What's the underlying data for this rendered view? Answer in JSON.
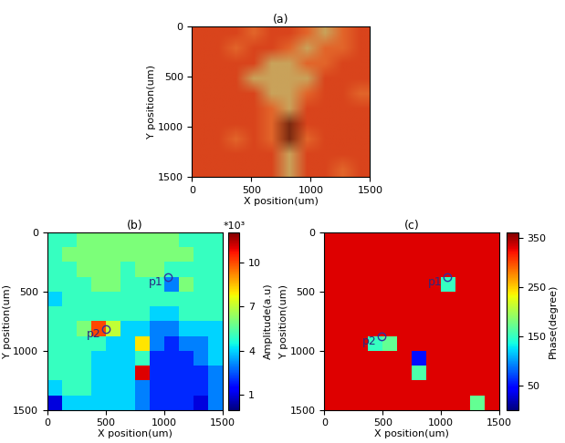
{
  "chart_data": [
    {
      "type": "image",
      "title": "(a)",
      "x_label": "X position(um)",
      "y_label": "Y position(um)",
      "xlim": [
        0,
        1500
      ],
      "ylim": [
        1500,
        0
      ],
      "xticks": [
        0,
        500,
        1000,
        1500
      ],
      "yticks": [
        0,
        500,
        1000,
        1500
      ],
      "cells": [
        [
          "#d9441c",
          "#d9441c",
          "#d9441c",
          "#e2652a",
          "#d9441c",
          "#d9441c",
          "#e2652a",
          "#c9a25a",
          "#e2652a",
          "#d9441c"
        ],
        [
          "#d9441c",
          "#d9441c",
          "#e2652a",
          "#d9441c",
          "#d9441c",
          "#e2652a",
          "#c9a25a",
          "#e2652a",
          "#e2652a",
          "#d9441c"
        ],
        [
          "#d9441c",
          "#d9441c",
          "#d9441c",
          "#d9441c",
          "#c9a25a",
          "#c9a25a",
          "#e2652a",
          "#e2652a",
          "#d9441c",
          "#d9441c"
        ],
        [
          "#d9441c",
          "#d9441c",
          "#d9441c",
          "#c9a25a",
          "#c9a25a",
          "#c9a25a",
          "#c9a25a",
          "#d9441c",
          "#d9441c",
          "#d9441c"
        ],
        [
          "#d9441c",
          "#d9441c",
          "#d9441c",
          "#d9441c",
          "#c9a25a",
          "#c9a25a",
          "#e2652a",
          "#d9441c",
          "#d9441c",
          "#e2652a"
        ],
        [
          "#d9441c",
          "#d9441c",
          "#d9441c",
          "#d9441c",
          "#e2652a",
          "#c9a25a",
          "#d9441c",
          "#d9441c",
          "#d9441c",
          "#d9441c"
        ],
        [
          "#d9441c",
          "#d9441c",
          "#d9441c",
          "#d9441c",
          "#e2652a",
          "#7a2a10",
          "#d9441c",
          "#d9441c",
          "#d9441c",
          "#d9441c"
        ],
        [
          "#d9441c",
          "#d9441c",
          "#e2652a",
          "#d9441c",
          "#e2652a",
          "#7a2a10",
          "#e2652a",
          "#d9441c",
          "#d9441c",
          "#d9441c"
        ],
        [
          "#d9441c",
          "#d9441c",
          "#d9441c",
          "#d9441c",
          "#d9441c",
          "#c9a25a",
          "#d9441c",
          "#d9441c",
          "#d9441c",
          "#d9441c"
        ],
        [
          "#d9441c",
          "#d9441c",
          "#d9441c",
          "#d9441c",
          "#d9441c",
          "#c9a25a",
          "#d9441c",
          "#d9441c",
          "#e2652a",
          "#d9441c"
        ]
      ]
    },
    {
      "type": "heatmap",
      "title": "(b)",
      "x_label": "X position(um)",
      "y_label": "Y position(um)",
      "xlim": [
        0,
        1500
      ],
      "ylim": [
        1500,
        0
      ],
      "xticks": [
        0,
        500,
        1000,
        1500
      ],
      "yticks": [
        0,
        500,
        1000,
        1500
      ],
      "colorbar_label": "Amplitude(a.u)",
      "colorbar_multiplier": "*10³",
      "colorbar_range": [
        0,
        12
      ],
      "colorbar_ticks": [
        1,
        4,
        7,
        10
      ],
      "cells": [
        [
          5,
          5,
          6,
          6,
          6,
          6,
          6,
          6,
          6,
          5,
          5,
          5
        ],
        [
          5,
          6,
          6,
          6,
          6,
          6,
          6,
          6,
          6,
          6,
          5,
          5
        ],
        [
          5,
          5,
          6,
          6,
          6,
          5,
          6,
          6,
          5,
          5,
          5,
          5
        ],
        [
          5,
          5,
          5,
          6,
          6,
          5,
          5,
          5,
          3,
          6,
          5,
          5
        ],
        [
          4,
          5,
          5,
          5,
          5,
          5,
          5,
          5,
          5,
          5,
          5,
          5
        ],
        [
          5,
          5,
          5,
          5,
          5,
          5,
          5,
          4,
          4,
          5,
          5,
          5
        ],
        [
          5,
          5,
          6,
          10,
          7,
          4,
          4,
          3,
          3,
          4,
          4,
          4
        ],
        [
          5,
          5,
          5,
          5,
          4,
          4,
          8,
          3,
          2,
          3,
          3,
          4
        ],
        [
          5,
          5,
          5,
          4,
          4,
          4,
          5,
          2,
          2,
          2,
          3,
          4
        ],
        [
          5,
          5,
          5,
          4,
          4,
          4,
          11,
          2,
          2,
          2,
          2,
          3
        ],
        [
          4,
          5,
          5,
          4,
          4,
          4,
          3,
          2,
          2,
          2,
          2,
          3
        ],
        [
          1,
          4,
          4,
          4,
          4,
          4,
          3,
          2,
          2,
          2,
          1,
          3
        ]
      ],
      "annotations": [
        {
          "text": "p1",
          "x": 1030,
          "y": 380
        },
        {
          "text": "p2",
          "x": 500,
          "y": 820
        }
      ]
    },
    {
      "type": "heatmap",
      "title": "(c)",
      "x_label": "X position(um)",
      "y_label": "Y position(um)",
      "xlim": [
        0,
        1500
      ],
      "ylim": [
        1500,
        0
      ],
      "xticks": [
        0,
        500,
        1000,
        1500
      ],
      "yticks": [
        0,
        500,
        1000,
        1500
      ],
      "colorbar_label": "Phase(degree)",
      "colorbar_range": [
        0,
        360
      ],
      "colorbar_ticks": [
        50,
        150,
        250,
        350
      ],
      "cells": [
        [
          330,
          330,
          330,
          330,
          330,
          330,
          330,
          330,
          330,
          330,
          330,
          330
        ],
        [
          330,
          330,
          330,
          330,
          330,
          330,
          330,
          330,
          330,
          330,
          330,
          330
        ],
        [
          330,
          330,
          330,
          330,
          330,
          330,
          330,
          330,
          330,
          330,
          330,
          330
        ],
        [
          330,
          330,
          330,
          330,
          330,
          330,
          330,
          330,
          150,
          330,
          330,
          330
        ],
        [
          330,
          330,
          330,
          330,
          330,
          330,
          330,
          330,
          330,
          330,
          330,
          330
        ],
        [
          330,
          330,
          330,
          330,
          330,
          330,
          330,
          330,
          330,
          330,
          330,
          330
        ],
        [
          330,
          330,
          330,
          330,
          330,
          330,
          330,
          330,
          330,
          330,
          330,
          330
        ],
        [
          330,
          330,
          330,
          150,
          170,
          330,
          330,
          330,
          330,
          330,
          330,
          330
        ],
        [
          330,
          330,
          330,
          330,
          330,
          330,
          50,
          330,
          330,
          330,
          330,
          330
        ],
        [
          330,
          330,
          330,
          330,
          330,
          330,
          160,
          330,
          330,
          330,
          330,
          330
        ],
        [
          330,
          330,
          330,
          330,
          330,
          330,
          330,
          330,
          330,
          330,
          330,
          330
        ],
        [
          330,
          330,
          330,
          330,
          330,
          330,
          330,
          330,
          330,
          330,
          170,
          330
        ]
      ],
      "annotations": [
        {
          "text": "p1",
          "x": 1050,
          "y": 380
        },
        {
          "text": "p2",
          "x": 490,
          "y": 880
        }
      ]
    }
  ]
}
